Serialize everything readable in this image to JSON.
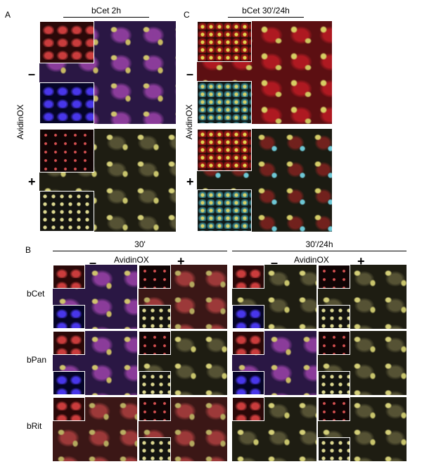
{
  "panel_a": {
    "letter": "A",
    "title": "bCet 2h",
    "avidin_label": "AvidinOX",
    "minus": "–",
    "plus": "+"
  },
  "panel_c": {
    "letter": "C",
    "title": "bCet 30'/24h",
    "avidin_label": "AvidinOX",
    "minus": "–",
    "plus": "+"
  },
  "panel_b": {
    "letter": "B",
    "group_left": "30'",
    "group_right": "30'/24h",
    "avidin_label_left": "AvidinOX",
    "avidin_label_right": "AvidinOX",
    "minus": "–",
    "plus": "+",
    "rows": [
      "bCet",
      "bPan",
      "bRit"
    ]
  }
}
